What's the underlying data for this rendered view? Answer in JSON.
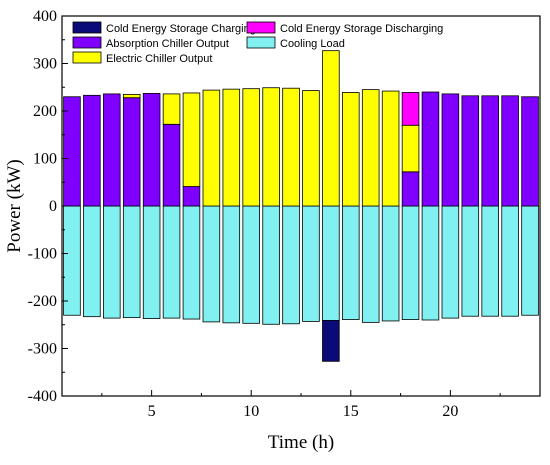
{
  "chart_data": {
    "type": "bar",
    "stacked": true,
    "xlabel": "Time (h)",
    "ylabel": "Power (kW)",
    "xlim": [
      0.5,
      24.5
    ],
    "ylim": [
      -400,
      400
    ],
    "x": [
      1,
      2,
      3,
      4,
      5,
      6,
      7,
      8,
      9,
      10,
      11,
      12,
      13,
      14,
      15,
      16,
      17,
      18,
      19,
      20,
      21,
      22,
      23,
      24
    ],
    "xticks": [
      5,
      10,
      15,
      20
    ],
    "yticks": [
      -400,
      -300,
      -200,
      -100,
      0,
      100,
      200,
      300,
      400
    ],
    "grid": false,
    "legend": "top-left, two columns",
    "series": [
      {
        "name": "Cold Energy Storage Charging",
        "color": "#0a0a78",
        "values": [
          0,
          0,
          0,
          0,
          0,
          0,
          0,
          0,
          0,
          0,
          0,
          0,
          0,
          -86,
          0,
          0,
          0,
          0,
          0,
          0,
          0,
          0,
          0,
          0
        ]
      },
      {
        "name": "Cold Energy Storage Discharging",
        "color": "#ff00ff",
        "values": [
          0,
          0,
          0,
          0,
          0,
          0,
          0,
          0,
          0,
          0,
          0,
          0,
          0,
          0,
          0,
          0,
          0,
          69,
          0,
          0,
          0,
          0,
          0,
          0
        ]
      },
      {
        "name": "Absorption Chiller Output",
        "color": "#7f00ff",
        "values": [
          230,
          233,
          236,
          228,
          237,
          172,
          41,
          0,
          0,
          0,
          0,
          0,
          0,
          0,
          0,
          0,
          0,
          72,
          240,
          236,
          232,
          232,
          232,
          230
        ]
      },
      {
        "name": "Cooling Load",
        "color": "#80f0f0",
        "values": [
          -230,
          -233,
          -236,
          -235,
          -237,
          -236,
          -238,
          -244,
          -246,
          -247,
          -249,
          -248,
          -243,
          -241,
          -239,
          -245,
          -242,
          -239,
          -240,
          -236,
          -232,
          -232,
          -232,
          -230
        ]
      },
      {
        "name": "Electric Chiller Output",
        "color": "#ffff00",
        "values": [
          0,
          0,
          0,
          7,
          0,
          64,
          197,
          244,
          246,
          247,
          249,
          248,
          243,
          327,
          239,
          245,
          242,
          98,
          0,
          0,
          0,
          0,
          0,
          0
        ]
      }
    ]
  }
}
